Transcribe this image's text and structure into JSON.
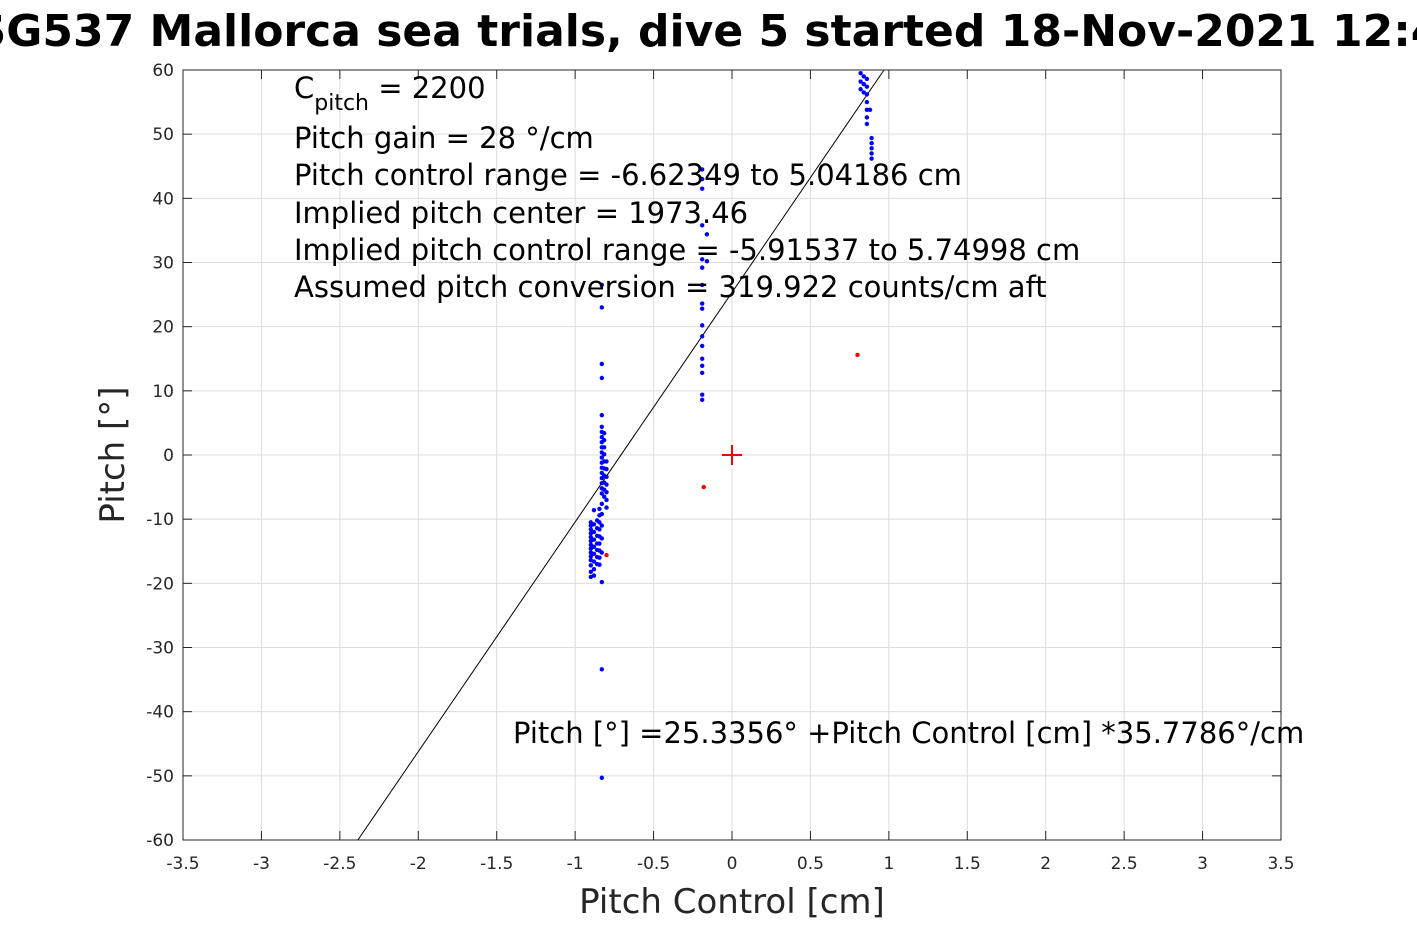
{
  "chart_data": {
    "type": "scatter",
    "title": "SG537 Mallorca sea trials, dive 5 started 18-Nov-2021 12:4",
    "xlabel": "Pitch Control [cm]",
    "ylabel": "Pitch [°]",
    "xlim": [
      -3.5,
      3.5
    ],
    "ylim": [
      -60,
      60
    ],
    "grid": true,
    "x_ticks": [
      "-3.5",
      "-3",
      "-2.5",
      "-2",
      "-1.5",
      "-1",
      "-0.5",
      "0",
      "0.5",
      "1",
      "1.5",
      "2",
      "2.5",
      "3",
      "3.5"
    ],
    "y_ticks": [
      "-60",
      "-50",
      "-40",
      "-30",
      "-20",
      "-10",
      "0",
      "10",
      "20",
      "30",
      "40",
      "50",
      "60"
    ],
    "fit_line": {
      "intercept": 25.3356,
      "slope": 35.7786,
      "color": "#000000"
    },
    "center_marker": {
      "x": 0,
      "y": 0,
      "color": "#ff0000"
    },
    "annotations": {
      "c_pitch_main": "C",
      "c_pitch_sub": "pitch",
      "c_pitch_value": " = 2200",
      "gain": "Pitch gain = 28 °/cm",
      "control_range": "Pitch control range = -6.62349 to 5.04186 cm",
      "implied_center": "Implied pitch center = 1973.46",
      "implied_range": "Implied pitch control range = -5.91537 to 5.74998 cm",
      "conversion": "Assumed pitch conversion = 319.922 counts/cm aft",
      "fit_eq": "Pitch [°] =25.3356° +Pitch Control [cm] *35.7786°/cm"
    },
    "series": [
      {
        "color": "#0000ff",
        "points": [
          [
            -0.9,
            -10.5
          ],
          [
            -0.9,
            -11.0
          ],
          [
            -0.9,
            -11.6
          ],
          [
            -0.9,
            -12.2
          ],
          [
            -0.9,
            -12.8
          ],
          [
            -0.9,
            -13.4
          ],
          [
            -0.9,
            -14.0
          ],
          [
            -0.9,
            -14.6
          ],
          [
            -0.9,
            -15.2
          ],
          [
            -0.9,
            -15.8
          ],
          [
            -0.9,
            -16.4
          ],
          [
            -0.9,
            -17.2
          ],
          [
            -0.9,
            -18.2
          ],
          [
            -0.9,
            -19.0
          ],
          [
            -0.88,
            -8.6
          ],
          [
            -0.88,
            -10.8
          ],
          [
            -0.88,
            -12.0
          ],
          [
            -0.88,
            -13.2
          ],
          [
            -0.88,
            -14.3
          ],
          [
            -0.88,
            -15.4
          ],
          [
            -0.88,
            -16.6
          ],
          [
            -0.88,
            -17.8
          ],
          [
            -0.88,
            -18.8
          ],
          [
            -0.86,
            -10.2
          ],
          [
            -0.86,
            -11.4
          ],
          [
            -0.86,
            -12.6
          ],
          [
            -0.86,
            -13.8
          ],
          [
            -0.86,
            -14.8
          ],
          [
            -0.86,
            -15.9
          ],
          [
            -0.86,
            -17.0
          ],
          [
            -0.845,
            -8.4
          ],
          [
            -0.845,
            -9.4
          ],
          [
            -0.845,
            -10.5
          ],
          [
            -0.845,
            -11.6
          ],
          [
            -0.845,
            -12.7
          ],
          [
            -0.845,
            -13.8
          ],
          [
            -0.845,
            -14.9
          ],
          [
            -0.845,
            -16.0
          ],
          [
            -0.845,
            -17.1
          ],
          [
            -0.83,
            -50.3
          ],
          [
            -0.83,
            -33.4
          ],
          [
            -0.83,
            -19.8
          ],
          [
            -0.83,
            -15.2
          ],
          [
            -0.83,
            -13.0
          ],
          [
            -0.83,
            -11.0
          ],
          [
            -0.83,
            -9.2
          ],
          [
            -0.83,
            -7.6
          ],
          [
            -0.83,
            -6.0
          ],
          [
            -0.83,
            -5.2
          ],
          [
            -0.83,
            -4.4
          ],
          [
            -0.83,
            -3.6
          ],
          [
            -0.83,
            -2.8
          ],
          [
            -0.83,
            -2.0
          ],
          [
            -0.83,
            -1.2
          ],
          [
            -0.83,
            -0.4
          ],
          [
            -0.83,
            0.4
          ],
          [
            -0.83,
            1.2
          ],
          [
            -0.83,
            2.0
          ],
          [
            -0.83,
            2.8
          ],
          [
            -0.83,
            3.6
          ],
          [
            -0.83,
            4.4
          ],
          [
            -0.83,
            6.2
          ],
          [
            -0.83,
            12.0
          ],
          [
            -0.83,
            14.2
          ],
          [
            -0.83,
            23.0
          ],
          [
            -0.83,
            26.5
          ],
          [
            -0.815,
            -6.5
          ],
          [
            -0.815,
            -5.4
          ],
          [
            -0.815,
            -4.3
          ],
          [
            -0.815,
            -3.2
          ],
          [
            -0.815,
            -2.1
          ],
          [
            -0.815,
            -1.0
          ],
          [
            -0.815,
            0.1
          ],
          [
            -0.815,
            1.2
          ],
          [
            -0.815,
            2.3
          ],
          [
            -0.815,
            3.4
          ],
          [
            -0.8,
            -8.2
          ],
          [
            -0.8,
            -7.0
          ],
          [
            -0.8,
            -5.8
          ],
          [
            -0.8,
            -4.6
          ],
          [
            -0.8,
            -3.4
          ],
          [
            -0.8,
            -2.2
          ],
          [
            -0.8,
            -1.0
          ],
          [
            -0.19,
            8.6
          ],
          [
            -0.19,
            9.4
          ],
          [
            -0.19,
            12.8
          ],
          [
            -0.19,
            13.9
          ],
          [
            -0.19,
            15.0
          ],
          [
            -0.19,
            17.0
          ],
          [
            -0.19,
            18.5
          ],
          [
            -0.19,
            20.2
          ],
          [
            -0.19,
            22.8
          ],
          [
            -0.19,
            23.6
          ],
          [
            -0.19,
            26.5
          ],
          [
            -0.19,
            29.2
          ],
          [
            -0.19,
            30.5
          ],
          [
            -0.19,
            35.8
          ],
          [
            -0.19,
            41.5
          ],
          [
            -0.19,
            43.0
          ],
          [
            -0.19,
            44.5
          ],
          [
            -0.16,
            34.4
          ],
          [
            -0.16,
            30.2
          ],
          [
            0.82,
            59.5
          ],
          [
            0.82,
            58.2
          ],
          [
            0.82,
            57.0
          ],
          [
            0.84,
            59.0
          ],
          [
            0.84,
            57.8
          ],
          [
            0.84,
            56.5
          ],
          [
            0.86,
            58.6
          ],
          [
            0.86,
            57.4
          ],
          [
            0.86,
            56.2
          ],
          [
            0.86,
            55.0
          ],
          [
            0.86,
            53.8
          ],
          [
            0.86,
            52.6
          ],
          [
            0.86,
            51.6
          ],
          [
            0.88,
            53.8
          ],
          [
            0.89,
            49.4
          ],
          [
            0.89,
            48.6
          ],
          [
            0.89,
            47.8
          ],
          [
            0.89,
            47.0
          ],
          [
            0.89,
            46.2
          ]
        ]
      },
      {
        "color": "#ff0000",
        "points": [
          [
            -0.8,
            -15.6
          ],
          [
            -0.18,
            -5.0
          ],
          [
            0.8,
            15.6
          ]
        ]
      }
    ]
  }
}
